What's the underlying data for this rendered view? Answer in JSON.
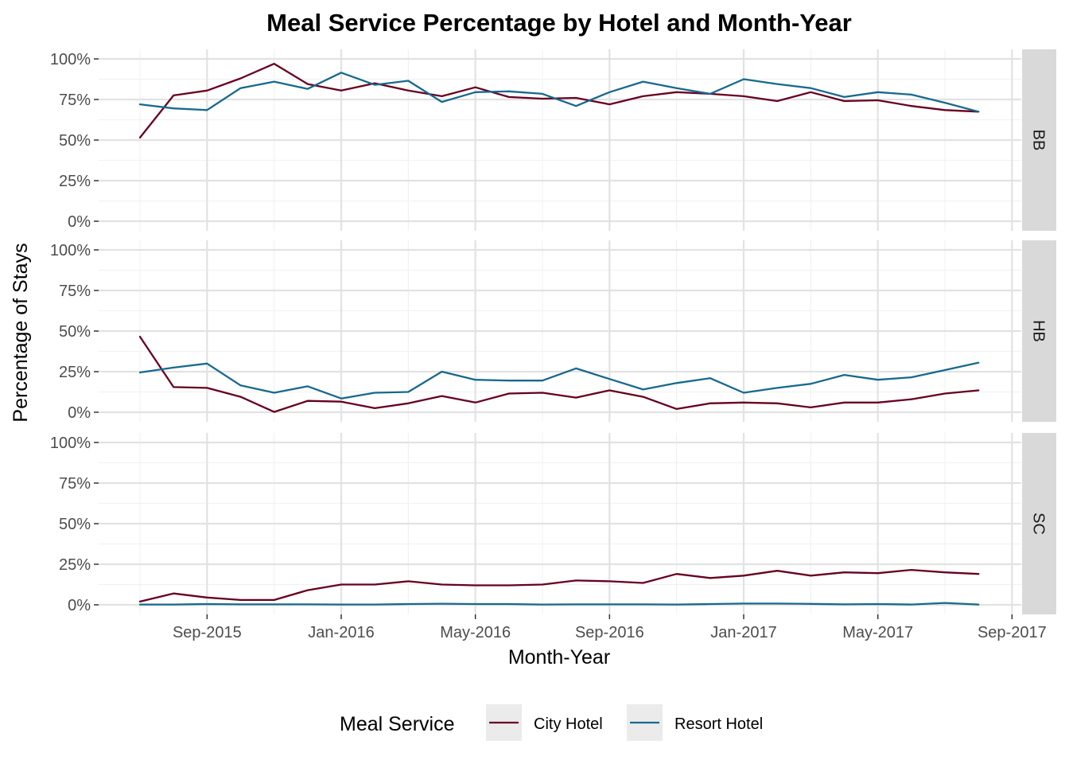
{
  "chart_data": {
    "type": "line",
    "title": "Meal Service Percentage by Hotel and Month-Year",
    "xlabel": "Month-Year",
    "ylabel": "Percentage of Stays",
    "x_tick_labels": [
      "Sep-2015",
      "Jan-2016",
      "May-2016",
      "Sep-2016",
      "Jan-2017",
      "May-2017",
      "Sep-2017"
    ],
    "y_tick_labels": [
      "0%",
      "25%",
      "50%",
      "75%",
      "100%"
    ],
    "ylim": [
      0,
      100
    ],
    "xlim": [
      "2015-06",
      "2017-09"
    ],
    "grid": true,
    "legend": {
      "title": "Meal Service",
      "position": "bottom",
      "entries": [
        {
          "label": "City Hotel",
          "color": "#67001f"
        },
        {
          "label": "Resort Hotel",
          "color": "#17698e"
        }
      ]
    },
    "x": [
      "2015-07",
      "2015-08",
      "2015-09",
      "2015-10",
      "2015-11",
      "2015-12",
      "2016-01",
      "2016-02",
      "2016-03",
      "2016-04",
      "2016-05",
      "2016-06",
      "2016-07",
      "2016-08",
      "2016-09",
      "2016-10",
      "2016-11",
      "2016-12",
      "2017-01",
      "2017-02",
      "2017-03",
      "2017-04",
      "2017-05",
      "2017-06",
      "2017-07",
      "2017-08"
    ],
    "facets": [
      {
        "label": "BB",
        "series": [
          {
            "name": "City Hotel",
            "color": "#67001f",
            "values": [
              51.5,
              77.5,
              80.5,
              88,
              97,
              84.5,
              80.5,
              85,
              80.5,
              77,
              82.5,
              76.5,
              75.5,
              76,
              72,
              77,
              79.5,
              78.5,
              77,
              74,
              79.5,
              74,
              74.5,
              71,
              68.5,
              67.5
            ]
          },
          {
            "name": "Resort Hotel",
            "color": "#17698e",
            "values": [
              72,
              69.5,
              68.5,
              82,
              86,
              81.5,
              91.5,
              84,
              86.5,
              73.5,
              79.5,
              80,
              78.5,
              71,
              79.5,
              86,
              82,
              78.5,
              87.5,
              84.5,
              82,
              76.5,
              79.5,
              78,
              73,
              67.5
            ]
          }
        ]
      },
      {
        "label": "HB",
        "series": [
          {
            "name": "City Hotel",
            "color": "#67001f",
            "values": [
              46.5,
              15.5,
              15,
              9.5,
              0.2,
              7,
              6.5,
              2.5,
              5.5,
              10,
              6,
              11.5,
              12,
              9,
              13.5,
              9.5,
              2,
              5.5,
              6,
              5.5,
              3,
              6,
              6,
              8,
              11.5,
              13.5
            ]
          },
          {
            "name": "Resort Hotel",
            "color": "#17698e",
            "values": [
              24.5,
              27.5,
              30,
              16.5,
              12,
              16,
              8.5,
              12,
              12.5,
              25,
              20,
              19.5,
              19.5,
              27,
              20.5,
              14,
              18,
              21,
              12,
              15,
              17.5,
              23,
              20,
              21.5,
              26,
              30.5
            ]
          }
        ]
      },
      {
        "label": "SC",
        "series": [
          {
            "name": "City Hotel",
            "color": "#67001f",
            "values": [
              2,
              7,
              4.5,
              3,
              3,
              9,
              12.5,
              12.5,
              14.5,
              12.5,
              12,
              12,
              12.5,
              15,
              14.5,
              13.5,
              19,
              16.5,
              18,
              21,
              18,
              20,
              19.5,
              21.5,
              20,
              19
            ]
          },
          {
            "name": "Resort Hotel",
            "color": "#17698e",
            "values": [
              0.2,
              0.2,
              0.5,
              0.3,
              0.3,
              0.3,
              0.2,
              0.2,
              0.5,
              0.7,
              0.5,
              0.5,
              0.2,
              0.3,
              0.3,
              0.3,
              0.2,
              0.5,
              0.8,
              0.8,
              0.6,
              0.3,
              0.5,
              0.2,
              1.2,
              0.2
            ]
          }
        ]
      }
    ]
  }
}
